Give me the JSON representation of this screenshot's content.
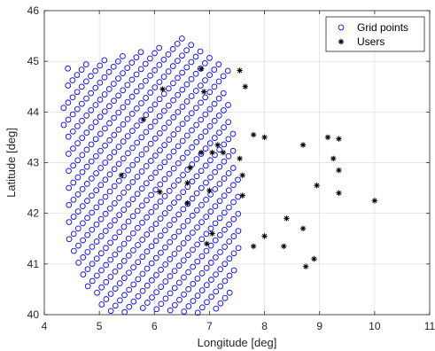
{
  "chart_data": {
    "type": "scatter",
    "xlabel": "Longitude [deg]",
    "ylabel": "Latitude [deg]",
    "xlim": [
      4,
      11
    ],
    "ylim": [
      40,
      46
    ],
    "xticks": [
      "4",
      "5",
      "6",
      "7",
      "8",
      "9",
      "10",
      "11"
    ],
    "yticks": [
      "40",
      "41",
      "42",
      "43",
      "44",
      "45",
      "46"
    ],
    "grid": true,
    "legend_position": "top-right",
    "grid_lattice": {
      "lon_origin": 6.5,
      "lat_origin": 45.45,
      "lon_step": 0.167,
      "lat_step": 0.1045,
      "rows": 40,
      "row_lon_shift": -0.0823,
      "row_lat_shift": -0.1278,
      "rows_spec": [
        [
          0,
          5
        ],
        [
          0,
          5
        ],
        [
          0,
          5
        ],
        [
          -1,
          6
        ],
        [
          -1,
          7
        ],
        [
          -2,
          7
        ],
        [
          -2,
          8
        ],
        [
          -3,
          9
        ],
        [
          -3,
          9
        ],
        [
          -4,
          10
        ],
        [
          -4,
          10
        ],
        [
          -5,
          11
        ],
        [
          -5,
          12
        ],
        [
          -6,
          12
        ],
        [
          -5,
          13
        ],
        [
          -5,
          13
        ],
        [
          -4,
          14
        ],
        [
          -4,
          14
        ],
        [
          -4,
          15
        ],
        [
          -3,
          15
        ],
        [
          -3,
          16
        ],
        [
          -2,
          16
        ],
        [
          -1,
          16
        ],
        [
          -1,
          17
        ],
        [
          0,
          17
        ],
        [
          0,
          17
        ],
        [
          1,
          18
        ],
        [
          1,
          18
        ],
        [
          2,
          18
        ],
        [
          2,
          18
        ],
        [
          3,
          19
        ],
        [
          3,
          19
        ],
        [
          4,
          19
        ],
        [
          4,
          19
        ],
        [
          5,
          19
        ],
        [
          6,
          19
        ],
        [
          7,
          19
        ],
        [
          8,
          19
        ],
        [
          10,
          19
        ],
        [
          12,
          19
        ]
      ]
    },
    "series": [
      {
        "name": "Grid points",
        "marker": "circle-open",
        "color": "#0000ff",
        "points": []
      },
      {
        "name": "Users",
        "marker": "asterisk",
        "color": "#000000",
        "points": [
          [
            6.15,
            44.45
          ],
          [
            6.85,
            44.85
          ],
          [
            7.55,
            44.82
          ],
          [
            6.9,
            44.4
          ],
          [
            7.65,
            44.5
          ],
          [
            5.8,
            43.85
          ],
          [
            7.8,
            43.55
          ],
          [
            8.0,
            43.5
          ],
          [
            9.15,
            43.5
          ],
          [
            9.35,
            43.47
          ],
          [
            7.15,
            43.35
          ],
          [
            8.7,
            43.35
          ],
          [
            6.85,
            43.2
          ],
          [
            7.05,
            43.2
          ],
          [
            7.25,
            43.2
          ],
          [
            7.55,
            43.08
          ],
          [
            9.25,
            43.08
          ],
          [
            9.35,
            42.85
          ],
          [
            5.4,
            42.75
          ],
          [
            6.65,
            42.9
          ],
          [
            7.6,
            42.75
          ],
          [
            6.6,
            42.6
          ],
          [
            8.95,
            42.55
          ],
          [
            6.1,
            42.42
          ],
          [
            7.0,
            42.45
          ],
          [
            7.6,
            42.35
          ],
          [
            9.35,
            42.4
          ],
          [
            10.0,
            42.25
          ],
          [
            6.6,
            42.2
          ],
          [
            8.4,
            41.9
          ],
          [
            8.7,
            41.7
          ],
          [
            7.05,
            41.6
          ],
          [
            8.0,
            41.55
          ],
          [
            6.95,
            41.4
          ],
          [
            7.8,
            41.35
          ],
          [
            8.35,
            41.35
          ],
          [
            8.9,
            41.1
          ],
          [
            8.75,
            40.95
          ]
        ]
      }
    ]
  },
  "legend": {
    "items": [
      {
        "label": "Grid points"
      },
      {
        "label": "Users"
      }
    ]
  }
}
